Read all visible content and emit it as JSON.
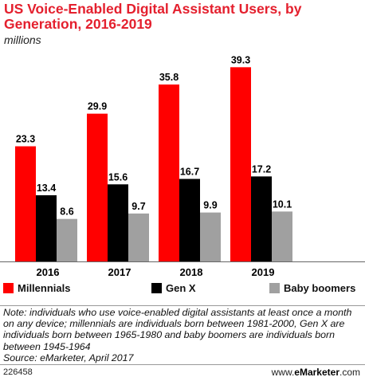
{
  "chart_data": {
    "type": "bar",
    "title": "US Voice-Enabled Digital Assistant Users, by Generation, 2016-2019",
    "subtitle": "millions",
    "categories": [
      "2016",
      "2017",
      "2018",
      "2019"
    ],
    "series": [
      {
        "name": "Millennials",
        "color": "#ff0000",
        "values": [
          23.3,
          29.9,
          35.8,
          39.3
        ]
      },
      {
        "name": "Gen X",
        "color": "#000000",
        "values": [
          13.4,
          15.6,
          16.7,
          17.2
        ]
      },
      {
        "name": "Baby boomers",
        "color": "#a0a0a0",
        "values": [
          8.6,
          9.7,
          9.9,
          10.1
        ]
      }
    ],
    "ylim": [
      0,
      40
    ],
    "grid": false,
    "legend_position": "bottom"
  },
  "note": "Note: individuals who use voice-enabled digital assistants at least once a month on any device; millennials are individuals born between 1981-2000, Gen X are individuals born between 1965-1980 and baby boomers are individuals born between 1945-1964",
  "source": "Source: eMarketer, April 2017",
  "chart_id": "226458",
  "brand": {
    "prefix": "www.",
    "name": "eMarketer",
    "suffix": ".com"
  }
}
